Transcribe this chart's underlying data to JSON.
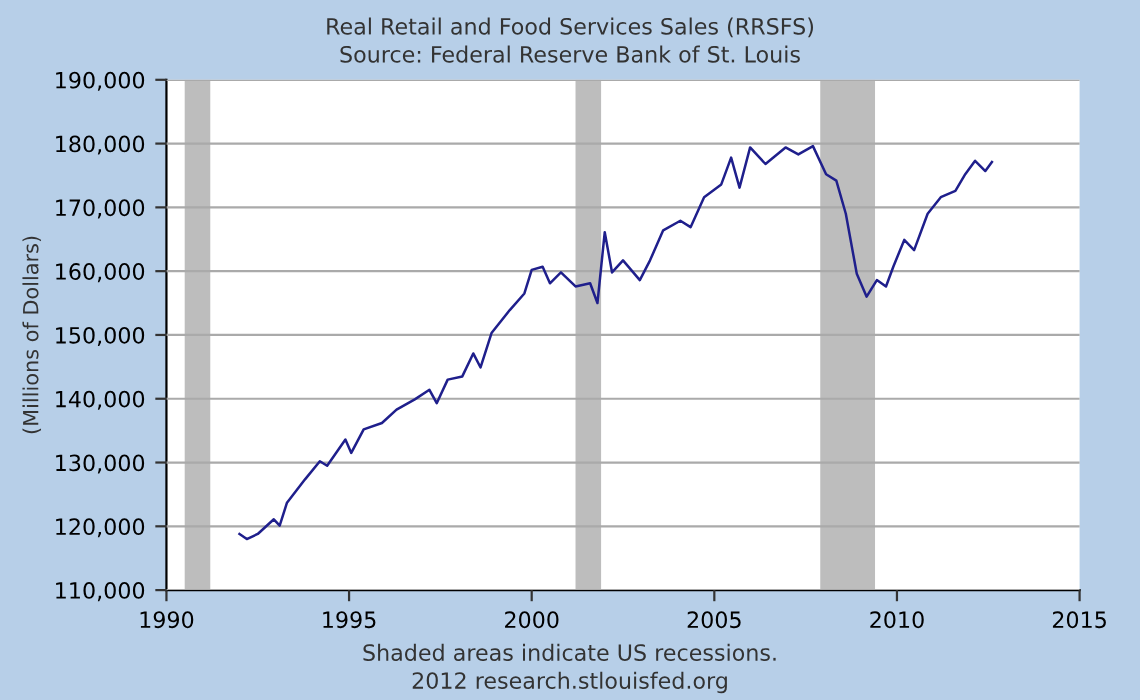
{
  "chart_data": {
    "type": "line",
    "title": "Real Retail and Food Services Sales (RRSFS)",
    "subtitle": "Source: Federal Reserve Bank of St. Louis",
    "ylabel": "(Millions of Dollars)",
    "annotations": [
      "Shaded areas indicate US recessions.",
      "2012 research.stlouisfed.org"
    ],
    "series": [
      {
        "color": "#1f1f8c",
        "x": [
          1992.0,
          1992.2,
          1992.5,
          1992.94,
          1993.1,
          1993.3,
          1993.8,
          1994.2,
          1994.4,
          1994.9,
          1995.06,
          1995.4,
          1995.9,
          1996.3,
          1996.8,
          1997.2,
          1997.4,
          1997.7,
          1998.1,
          1998.4,
          1998.6,
          1998.9,
          1999.4,
          1999.8,
          2000.0,
          2000.3,
          2000.5,
          2000.8,
          2001.2,
          2001.6,
          2001.8,
          2002.0,
          2002.2,
          2002.5,
          2002.96,
          2003.24,
          2003.6,
          2004.07,
          2004.35,
          2004.72,
          2005.19,
          2005.46,
          2005.69,
          2005.98,
          2006.4,
          2006.95,
          2007.3,
          2007.7,
          2008.06,
          2008.34,
          2008.6,
          2008.9,
          2009.17,
          2009.45,
          2009.7,
          2009.9,
          2010.2,
          2010.47,
          2010.84,
          2011.2,
          2011.6,
          2011.87,
          2012.14,
          2012.42,
          2012.6
        ],
        "values": [
          118800,
          118000,
          118800,
          121100,
          120100,
          123700,
          127400,
          130200,
          129500,
          133600,
          131500,
          135200,
          136200,
          138300,
          139900,
          141400,
          139300,
          143000,
          143500,
          147100,
          144900,
          150300,
          153900,
          156500,
          160200,
          160700,
          158100,
          159800,
          157600,
          158100,
          155000,
          166100,
          159800,
          161700,
          158600,
          161700,
          166400,
          167900,
          166900,
          171600,
          173600,
          177800,
          173100,
          179400,
          176800,
          179400,
          178300,
          179600,
          175200,
          174200,
          169000,
          159600,
          156000,
          158600,
          157600,
          160700,
          164900,
          163300,
          169000,
          171600,
          172600,
          175200,
          177300,
          175700,
          177100
        ]
      }
    ],
    "xlim": [
      1990,
      2015
    ],
    "xticks": [
      1990,
      1995,
      2000,
      2005,
      2010,
      2015
    ],
    "ylim": [
      110000,
      190000
    ],
    "yticks": [
      {
        "value": 110000,
        "label": "110,000"
      },
      {
        "value": 120000,
        "label": "120,000"
      },
      {
        "value": 130000,
        "label": "130,000"
      },
      {
        "value": 140000,
        "label": "140,000"
      },
      {
        "value": 150000,
        "label": "150,000"
      },
      {
        "value": 160000,
        "label": "160,000"
      },
      {
        "value": 170000,
        "label": "170,000"
      },
      {
        "value": 180000,
        "label": "180,000"
      },
      {
        "value": 190000,
        "label": "190,000"
      }
    ],
    "bands": [
      {
        "axis": "x",
        "from": 1990.5,
        "to": 1991.2,
        "color": "#bdbdbd"
      },
      {
        "axis": "x",
        "from": 2001.2,
        "to": 2001.9,
        "color": "#bdbdbd"
      },
      {
        "axis": "x",
        "from": 2007.9,
        "to": 2009.4,
        "color": "#bdbdbd"
      }
    ],
    "grid": "y",
    "line_style": "solid"
  }
}
